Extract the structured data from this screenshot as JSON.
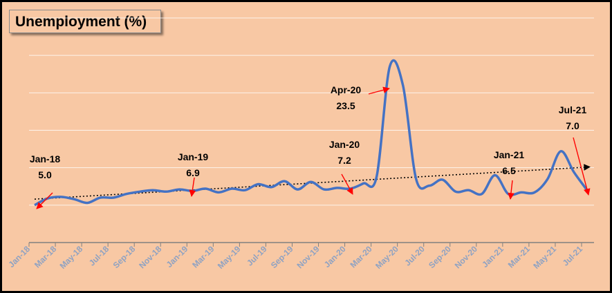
{
  "chart_data": {
    "type": "line",
    "title": "Unemployment (%)",
    "xlabel": "",
    "ylabel": "",
    "ylim": [
      0,
      30
    ],
    "grid": true,
    "colors": {
      "series": "#4472c4",
      "trend": "#000000",
      "annotation_arrow": "#ff0000",
      "tick_label": "#8fa2c2"
    },
    "categories": [
      "Jan-18",
      "Feb-18",
      "Mar-18",
      "Apr-18",
      "May-18",
      "Jun-18",
      "Jul-18",
      "Aug-18",
      "Sep-18",
      "Oct-18",
      "Nov-18",
      "Dec-18",
      "Jan-19",
      "Feb-19",
      "Mar-19",
      "Apr-19",
      "May-19",
      "Jun-19",
      "Jul-19",
      "Aug-19",
      "Sep-19",
      "Oct-19",
      "Nov-19",
      "Dec-19",
      "Jan-20",
      "Feb-20",
      "Mar-20",
      "Apr-20",
      "May-20",
      "Jun-20",
      "Jul-20",
      "Aug-20",
      "Sep-20",
      "Oct-20",
      "Nov-20",
      "Dec-20",
      "Jan-21",
      "Feb-21",
      "Mar-21",
      "Apr-21",
      "May-21",
      "Jun-21",
      "Jul-21"
    ],
    "tick_labels": [
      "Jan-18",
      "Mar-18",
      "May-18",
      "Jul-18",
      "Sep-18",
      "Nov-18",
      "Jan-19",
      "Mar-19",
      "May-19",
      "Jul-19",
      "Sep-19",
      "Nov-19",
      "Jan-20",
      "Mar-20",
      "May-20",
      "Jul-20",
      "Sep-20",
      "Nov-20",
      "Jan-21",
      "Mar-21",
      "May-21",
      "Jul-21"
    ],
    "series": [
      {
        "name": "Unemployment (%)",
        "values": [
          5.0,
          5.9,
          6.1,
          5.8,
          5.3,
          6.0,
          6.0,
          6.5,
          6.8,
          7.0,
          6.8,
          7.1,
          6.9,
          7.2,
          6.7,
          7.2,
          7.0,
          7.8,
          7.4,
          8.2,
          7.1,
          8.1,
          7.1,
          7.3,
          7.2,
          7.9,
          8.8,
          23.5,
          21.0,
          8.5,
          7.6,
          8.4,
          6.8,
          7.0,
          6.5,
          9.0,
          6.5,
          6.7,
          6.7,
          8.5,
          12.2,
          9.4,
          7.0
        ]
      }
    ],
    "trend": {
      "name": "Linear trend",
      "start": 5.8,
      "end": 10.1
    },
    "annotations": [
      {
        "period": "Jan-18",
        "value": "5.0"
      },
      {
        "period": "Jan-19",
        "value": "6.9"
      },
      {
        "period": "Jan-20",
        "value": "7.2"
      },
      {
        "period": "Apr-20",
        "value": "23.5"
      },
      {
        "period": "Jan-21",
        "value": "6.5"
      },
      {
        "period": "Jul-21",
        "value": "7.0"
      }
    ]
  }
}
